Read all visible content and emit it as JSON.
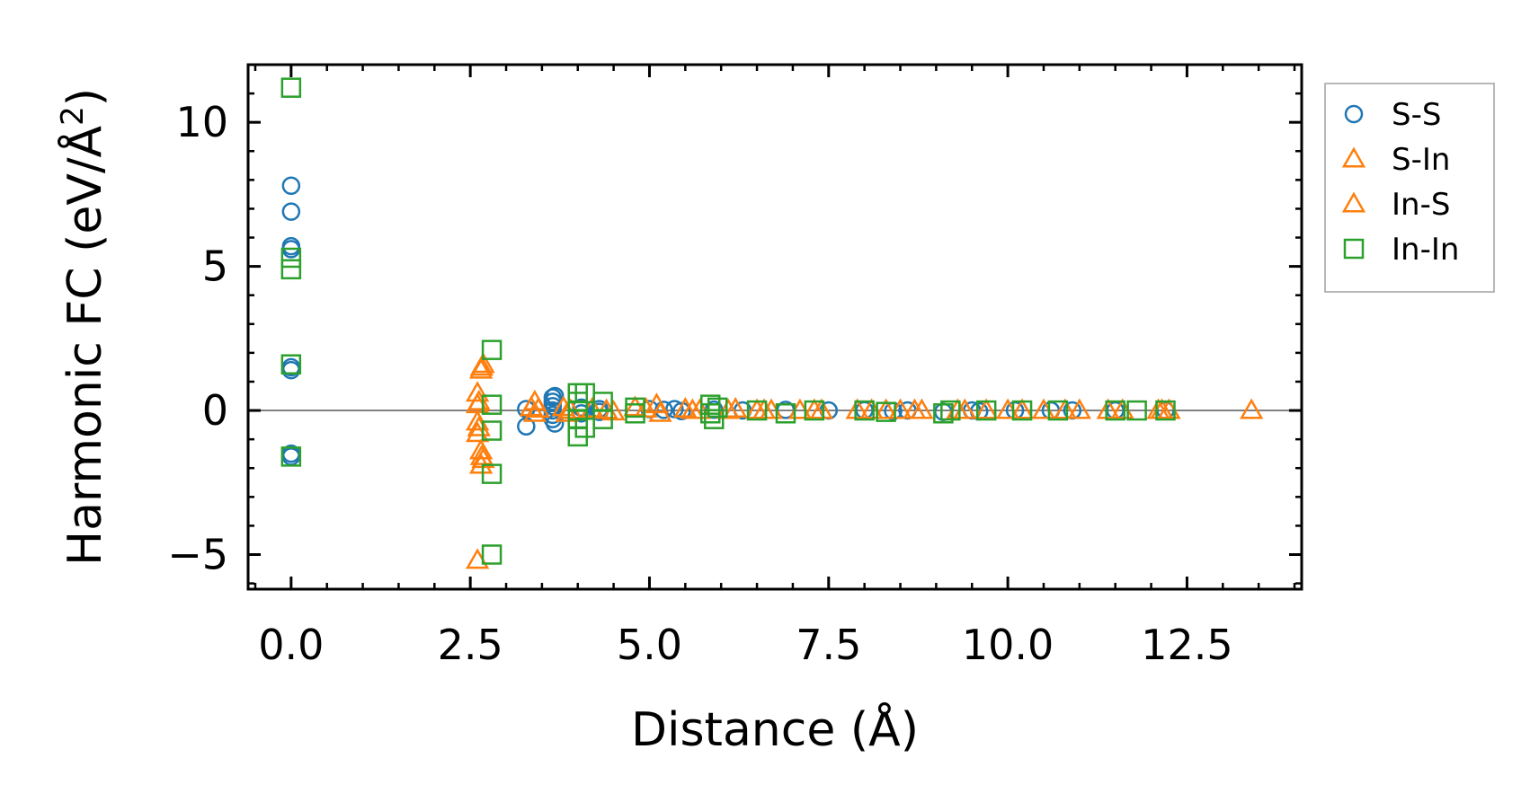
{
  "chart_data": {
    "type": "scatter",
    "title": "",
    "xlabel": "Distance (Å)",
    "ylabel": "Harmonic FC (eV/Å²)",
    "ylabel_parts": {
      "main": "Harmonic FC (eV/Å",
      "sup": "2",
      "close": ")"
    },
    "xlim": [
      -0.6,
      14.1
    ],
    "ylim": [
      -6.2,
      12.0
    ],
    "xticks": [
      0.0,
      2.5,
      5.0,
      7.5,
      10.0,
      12.5
    ],
    "xtick_labels": [
      "0.0",
      "2.5",
      "5.0",
      "7.5",
      "10.0",
      "12.5"
    ],
    "xminor_step": 0.5,
    "yticks": [
      -5,
      0,
      5,
      10
    ],
    "ytick_labels": [
      "−5",
      "0",
      "5",
      "10"
    ],
    "yminor_step": 1,
    "zero_line": 0,
    "grid": false,
    "legend_position": "outside-right-top",
    "series": [
      {
        "name": "S-S",
        "marker": "circle",
        "color": "#1f77b4",
        "points": [
          [
            0,
            7.8
          ],
          [
            0,
            6.9
          ],
          [
            0,
            5.7
          ],
          [
            0,
            5.6
          ],
          [
            0,
            1.5
          ],
          [
            0,
            1.4
          ],
          [
            0,
            -1.5
          ],
          [
            0,
            -1.6
          ],
          [
            3.28,
            0.05
          ],
          [
            3.28,
            -0.55
          ],
          [
            3.65,
            0.45
          ],
          [
            3.65,
            0.3
          ],
          [
            3.65,
            0.15
          ],
          [
            3.65,
            0.0
          ],
          [
            3.65,
            -0.15
          ],
          [
            3.65,
            -0.3
          ],
          [
            3.68,
            0.5
          ],
          [
            3.68,
            -0.45
          ],
          [
            4.05,
            0.1
          ],
          [
            4.05,
            -0.1
          ],
          [
            4.3,
            0.05
          ],
          [
            4.3,
            -0.05
          ],
          [
            5.0,
            0.05
          ],
          [
            5.2,
            0.02
          ],
          [
            5.35,
            0.05
          ],
          [
            5.45,
            -0.02
          ],
          [
            5.9,
            0.03
          ],
          [
            6.3,
            0.0
          ],
          [
            6.9,
            0.02
          ],
          [
            7.5,
            0.0
          ],
          [
            8.0,
            0.01
          ],
          [
            8.4,
            -0.02
          ],
          [
            8.6,
            0.0
          ],
          [
            9.1,
            -0.05
          ],
          [
            9.5,
            0.0
          ],
          [
            9.6,
            -0.03
          ],
          [
            10.1,
            0.0
          ],
          [
            10.6,
            0.0
          ],
          [
            10.9,
            0.0
          ],
          [
            11.5,
            0.0
          ],
          [
            12.2,
            0.0
          ]
        ]
      },
      {
        "name": "S-In",
        "marker": "triangle",
        "color": "#ff7f0e",
        "points": [
          [
            2.6,
            0.6
          ],
          [
            2.6,
            0.2
          ],
          [
            2.6,
            -0.4
          ],
          [
            2.6,
            -0.8
          ],
          [
            2.6,
            -5.2
          ],
          [
            2.65,
            1.4
          ],
          [
            2.65,
            -1.4
          ],
          [
            2.65,
            -1.9
          ],
          [
            2.68,
            1.6
          ],
          [
            2.68,
            -1.7
          ],
          [
            3.35,
            0.1
          ],
          [
            3.4,
            -0.1
          ],
          [
            3.4,
            0.3
          ],
          [
            3.8,
            0.1
          ],
          [
            3.85,
            -0.1
          ],
          [
            4.2,
            0.05
          ],
          [
            4.5,
            -0.05
          ],
          [
            4.8,
            0.1
          ],
          [
            5.1,
            0.2
          ],
          [
            5.15,
            -0.1
          ],
          [
            5.5,
            0.05
          ],
          [
            5.7,
            0.0
          ],
          [
            6.2,
            0.05
          ],
          [
            6.5,
            0.0
          ],
          [
            6.6,
            0.0
          ],
          [
            7.1,
            0.0
          ],
          [
            7.3,
            0.0
          ],
          [
            7.9,
            0.0
          ],
          [
            8.3,
            0.0
          ],
          [
            8.5,
            0.0
          ],
          [
            8.8,
            0.0
          ],
          [
            9.3,
            0.0
          ],
          [
            9.7,
            0.0
          ],
          [
            10.2,
            0.0
          ],
          [
            10.5,
            0.0
          ],
          [
            11.0,
            0.0
          ],
          [
            11.6,
            0.0
          ],
          [
            12.1,
            0.0
          ],
          [
            12.25,
            0.0
          ],
          [
            13.4,
            0.0
          ]
        ]
      },
      {
        "name": "In-S",
        "marker": "triangle",
        "color": "#ff7f0e",
        "points": [
          [
            2.62,
            0.3
          ],
          [
            2.62,
            -0.6
          ],
          [
            2.66,
            -1.6
          ],
          [
            2.66,
            1.5
          ],
          [
            3.45,
            0.05
          ],
          [
            3.9,
            0.0
          ],
          [
            4.4,
            0.0
          ],
          [
            4.95,
            0.05
          ],
          [
            5.6,
            0.0
          ],
          [
            6.1,
            0.0
          ],
          [
            6.7,
            0.0
          ],
          [
            7.4,
            0.0
          ],
          [
            8.1,
            0.0
          ],
          [
            8.7,
            0.0
          ],
          [
            9.4,
            0.0
          ],
          [
            10.0,
            0.0
          ],
          [
            10.8,
            0.0
          ],
          [
            11.4,
            0.0
          ],
          [
            12.15,
            0.0
          ]
        ]
      },
      {
        "name": "In-In",
        "marker": "square",
        "color": "#2ca02c",
        "points": [
          [
            0,
            11.2
          ],
          [
            0,
            5.3
          ],
          [
            0,
            4.9
          ],
          [
            0,
            1.6
          ],
          [
            0,
            -1.6
          ],
          [
            2.8,
            2.1
          ],
          [
            2.8,
            0.2
          ],
          [
            2.8,
            -0.7
          ],
          [
            2.8,
            -2.2
          ],
          [
            2.8,
            -5.0
          ],
          [
            4.0,
            0.6
          ],
          [
            4.0,
            0.3
          ],
          [
            4.0,
            0.0
          ],
          [
            4.0,
            -0.3
          ],
          [
            4.0,
            -0.9
          ],
          [
            4.1,
            0.6
          ],
          [
            4.1,
            -0.6
          ],
          [
            4.35,
            0.3
          ],
          [
            4.35,
            -0.3
          ],
          [
            4.8,
            0.1
          ],
          [
            4.8,
            -0.1
          ],
          [
            5.85,
            0.2
          ],
          [
            5.85,
            -0.1
          ],
          [
            5.9,
            -0.3
          ],
          [
            5.95,
            0.1
          ],
          [
            6.5,
            0.0
          ],
          [
            6.9,
            -0.1
          ],
          [
            7.3,
            0.0
          ],
          [
            8.0,
            0.0
          ],
          [
            8.3,
            -0.05
          ],
          [
            9.1,
            -0.1
          ],
          [
            9.2,
            0.0
          ],
          [
            9.7,
            0.0
          ],
          [
            10.2,
            0.0
          ],
          [
            10.7,
            0.0
          ],
          [
            11.5,
            0.0
          ],
          [
            11.8,
            0.0
          ],
          [
            12.2,
            0.0
          ]
        ]
      }
    ]
  }
}
